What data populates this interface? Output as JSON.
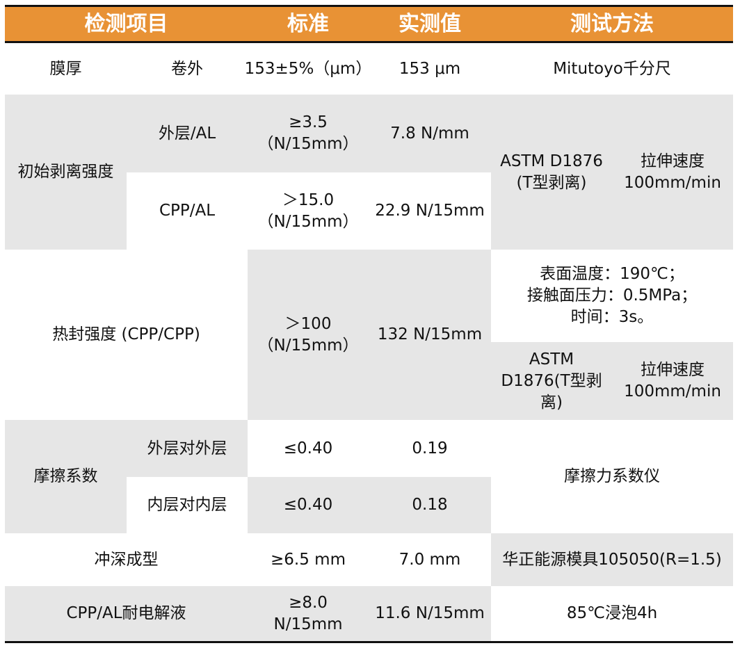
{
  "colors": {
    "header_bg": "#e89235",
    "header_text": "#ffffff",
    "shade": "#e6e6e6"
  },
  "header": {
    "item": "检测项目",
    "standard": "标准",
    "measured": "实测值",
    "method": "测试方法"
  },
  "rows": {
    "thickness": {
      "item": "膜厚",
      "sub": "卷外",
      "standard": "153±5%（μm）",
      "measured": "153 μm",
      "method": "Mitutoyo千分尺"
    },
    "peel": {
      "item": "初始剥离强度",
      "outer": {
        "sub": "外层/AL",
        "standard": "≥3.5\n（N/15mm）",
        "measured": "7.8 N/mm"
      },
      "cpp": {
        "sub": "CPP/AL",
        "standard": "＞15.0\n（N/15mm）",
        "measured": "22.9 N/15mm"
      },
      "method_a": "ASTM D1876\n(T型剥离)",
      "method_b": "拉伸速度\n100mm/min"
    },
    "heat_seal": {
      "item": "热封强度 (CPP/CPP)",
      "standard": "＞100\n（N/15mm）",
      "measured": "132 N/15mm",
      "condition": "表面温度：190℃；\n接触面压力：0.5MPa；\n时间：3s。",
      "method_a": "ASTM\nD1876(T型剥\n离)",
      "method_b": "拉伸速度\n100mm/min"
    },
    "friction": {
      "item": "摩擦系数",
      "outer": {
        "sub": "外层对外层",
        "standard": "≤0.40",
        "measured": "0.19"
      },
      "inner": {
        "sub": "内层对内层",
        "standard": "≤0.40",
        "measured": "0.18"
      },
      "method": "摩擦力系数仪"
    },
    "deep_draw": {
      "item": "冲深成型",
      "standard": "≥6.5 mm",
      "measured": "7.0 mm",
      "method": "华正能源模具105050(R=1.5)"
    },
    "electrolyte": {
      "item": "CPP/AL耐电解液",
      "standard": "≥8.0\nN/15mm",
      "measured": "11.6 N/15mm",
      "method": "85℃浸泡4h"
    }
  }
}
